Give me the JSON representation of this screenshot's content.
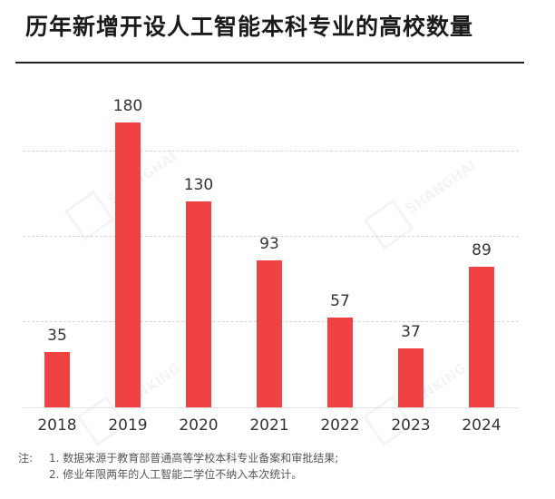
{
  "title": "历年新增开设人工智能本科专业的高校数量",
  "chart_data": {
    "type": "bar",
    "title": "历年新增开设人工智能本科专业的高校数量",
    "xlabel": "",
    "ylabel": "",
    "categories": [
      "2018",
      "2019",
      "2020",
      "2021",
      "2022",
      "2023",
      "2024"
    ],
    "values": [
      35,
      180,
      130,
      93,
      57,
      37,
      89
    ],
    "ylim": [
      0,
      200
    ],
    "grid": true,
    "legend": null,
    "bar_color": "#f04242",
    "data_labels": true
  },
  "notes": {
    "prefix": "注:",
    "lines": [
      "1. 数据来源于教育部普通高等学校本科专业备案和审批结果;",
      "2. 修业年限两年的人工智能二学位不纳入本次统计。"
    ]
  },
  "watermark": {
    "text_line1": "SHANGHAI",
    "text_line2": "RANKING"
  }
}
